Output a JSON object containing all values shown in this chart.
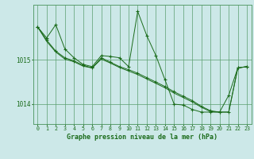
{
  "title": "Graphe pression niveau de la mer (hPa)",
  "bg_color": "#cce8e8",
  "plot_bg_color": "#cce8e8",
  "grid_color": "#5a9e6e",
  "line_color": "#1a6b1a",
  "marker_color": "#1a6b1a",
  "xlim": [
    -0.5,
    23.5
  ],
  "ylim": [
    1013.55,
    1016.25
  ],
  "yticks": [
    1014,
    1015
  ],
  "xticks": [
    0,
    1,
    2,
    3,
    4,
    5,
    6,
    7,
    8,
    9,
    10,
    11,
    12,
    13,
    14,
    15,
    16,
    17,
    18,
    19,
    20,
    21,
    22,
    23
  ],
  "series1": [
    1015.75,
    1015.5,
    1015.8,
    1015.25,
    1015.05,
    1014.9,
    1014.85,
    1015.1,
    1015.08,
    1015.05,
    1014.85,
    1016.1,
    1015.55,
    1015.1,
    1014.55,
    1014.0,
    1013.98,
    1013.88,
    1013.82,
    1013.82,
    1013.82,
    1014.2,
    1014.82,
    1014.85
  ],
  "series2": [
    1015.75,
    1015.45,
    1015.2,
    1015.05,
    1014.98,
    1014.88,
    1014.82,
    1015.05,
    1014.95,
    1014.85,
    1014.78,
    1014.7,
    1014.6,
    1014.5,
    1014.4,
    1014.28,
    1014.18,
    1014.08,
    1013.95,
    1013.85,
    1013.82,
    1013.82,
    1014.82,
    1014.85
  ],
  "series3": [
    1015.75,
    1015.42,
    1015.18,
    1015.02,
    1014.96,
    1014.86,
    1014.82,
    1015.02,
    1014.93,
    1014.83,
    1014.75,
    1014.67,
    1014.57,
    1014.47,
    1014.37,
    1014.25,
    1014.15,
    1014.05,
    1013.93,
    1013.83,
    1013.82,
    1013.82,
    1014.82,
    1014.85
  ]
}
